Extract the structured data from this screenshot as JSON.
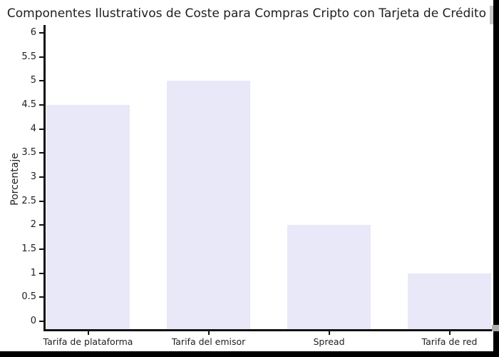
{
  "chart_data": {
    "type": "bar",
    "title": "Componentes Ilustrativos de Coste para Compras Cripto con Tarjeta de Crédito",
    "categories": [
      "Tarifa de plataforma",
      "Tarifa del emisor",
      "Spread",
      "Tarifa de red"
    ],
    "values": [
      4.5,
      5,
      2,
      1
    ],
    "xlabel": "",
    "ylabel": "Porcentaje",
    "ylim": [
      0,
      6
    ],
    "ytick_step": 0.5,
    "ytick_labels": [
      "0",
      "0.5",
      "1",
      "1.5",
      "2",
      "2.5",
      "3",
      "3.5",
      "4",
      "4.5",
      "5",
      "5.5",
      "6"
    ],
    "grid": false,
    "legend": null,
    "bar_color": "#e8e8f8",
    "axis_color": "#111111",
    "text_color": "#1f1f1f",
    "background_color": "#ffffff"
  },
  "screen": {
    "edge_color": "#000000",
    "scrollbar_color": "#c8c8c8"
  }
}
